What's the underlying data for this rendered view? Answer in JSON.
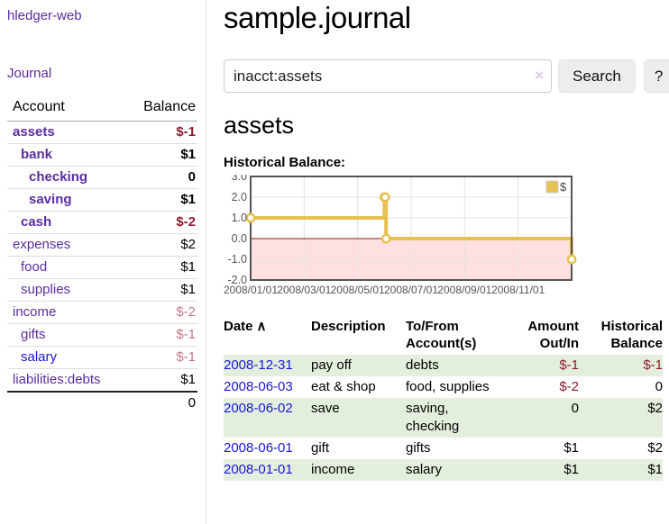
{
  "sidebar": {
    "brand": "hledger-web",
    "journal_link": "Journal",
    "accounts_table": {
      "account_header": "Account",
      "balance_header": "Balance",
      "rows": [
        {
          "label": "assets",
          "indent": 1,
          "bold": true,
          "link_color": "purple",
          "value": "$-1",
          "value_class": "neg-strong"
        },
        {
          "label": "bank",
          "indent": 2,
          "bold": true,
          "link_color": "purple",
          "value": "$1",
          "value_class": ""
        },
        {
          "label": "checking",
          "indent": 3,
          "bold": true,
          "link_color": "purple",
          "value": "0",
          "value_class": ""
        },
        {
          "label": "saving",
          "indent": 3,
          "bold": true,
          "link_color": "purple",
          "value": "$1",
          "value_class": ""
        },
        {
          "label": "cash",
          "indent": 2,
          "bold": true,
          "link_color": "purple",
          "value": "$-2",
          "value_class": "neg-strong"
        },
        {
          "label": "expenses",
          "indent": 1,
          "bold": false,
          "link_color": "purple",
          "value": "$2",
          "value_class": ""
        },
        {
          "label": "food",
          "indent": 2,
          "bold": false,
          "link_color": "purple",
          "value": "$1",
          "value_class": ""
        },
        {
          "label": "supplies",
          "indent": 2,
          "bold": false,
          "link_color": "purple",
          "value": "$1",
          "value_class": ""
        },
        {
          "label": "income",
          "indent": 1,
          "bold": false,
          "link_color": "purple",
          "value": "$-2",
          "value_class": "neg-soft"
        },
        {
          "label": "gifts",
          "indent": 2,
          "bold": false,
          "link_color": "purple",
          "value": "$-1",
          "value_class": "neg-soft"
        },
        {
          "label": "salary",
          "indent": 2,
          "bold": false,
          "link_color": "blue",
          "value": "$-1",
          "value_class": "neg-soft"
        },
        {
          "label": "liabilities:debts",
          "indent": 1,
          "bold": false,
          "link_color": "purple",
          "value": "$1",
          "value_class": ""
        }
      ],
      "total": "0"
    }
  },
  "header": {
    "title": "sample.journal"
  },
  "search": {
    "query": "inacct:assets",
    "clear_icon": "×",
    "search_label": "Search",
    "help_label": "?"
  },
  "account_page": {
    "heading": "assets",
    "chart_title": "Historical Balance:"
  },
  "chart_data": {
    "type": "line",
    "style": "step-with-markers",
    "series": [
      {
        "name": "$",
        "points": [
          {
            "x": "2008-01-01",
            "y": 1
          },
          {
            "x": "2008-06-01",
            "y": 2
          },
          {
            "x": "2008-06-02",
            "y": 2
          },
          {
            "x": "2008-06-03",
            "y": 0
          },
          {
            "x": "2008-12-31",
            "y": -1
          }
        ]
      }
    ],
    "xrange": [
      "2008-01-01",
      "2008-12-31"
    ],
    "ylim": [
      -2,
      3
    ],
    "yticks": [
      3.0,
      2.0,
      1.0,
      0.0,
      -1.0,
      -2.0
    ],
    "xticks": [
      "2008/01/01",
      "2008/03/01",
      "2008/05/01",
      "2008/07/01",
      "2008/09/01",
      "2008/11/01"
    ],
    "legend": {
      "position": "top-right",
      "label": "$"
    },
    "negative_region_shaded": true,
    "grid": true,
    "colors": {
      "line": "#E6C14F",
      "marker_fill": "#ffffff",
      "negative_fill": "rgba(255,0,0,0.12)",
      "zero_line": "#8b1a1a",
      "border": "#545454",
      "grid": "#e3e3e3",
      "tick_label": "#545454"
    }
  },
  "register_table": {
    "headers": {
      "date": "Date",
      "sort_icon": "∧",
      "description": "Description",
      "accounts": "To/From Account(s)",
      "amount": "Amount Out/In",
      "balance": "Historical Balance"
    },
    "rows": [
      {
        "date": "2008-12-31",
        "description": "pay off",
        "accounts": "debts",
        "amount": "$-1",
        "balance": "$-1"
      },
      {
        "date": "2008-06-03",
        "description": "eat & shop",
        "accounts": "food, supplies",
        "amount": "$-2",
        "balance": "0"
      },
      {
        "date": "2008-06-02",
        "description": "save",
        "accounts": "saving, checking",
        "amount": "0",
        "balance": "$2"
      },
      {
        "date": "2008-06-01",
        "description": "gift",
        "accounts": "gifts",
        "amount": "$1",
        "balance": "$2"
      },
      {
        "date": "2008-01-01",
        "description": "income",
        "accounts": "salary",
        "amount": "$1",
        "balance": "$1"
      }
    ]
  }
}
